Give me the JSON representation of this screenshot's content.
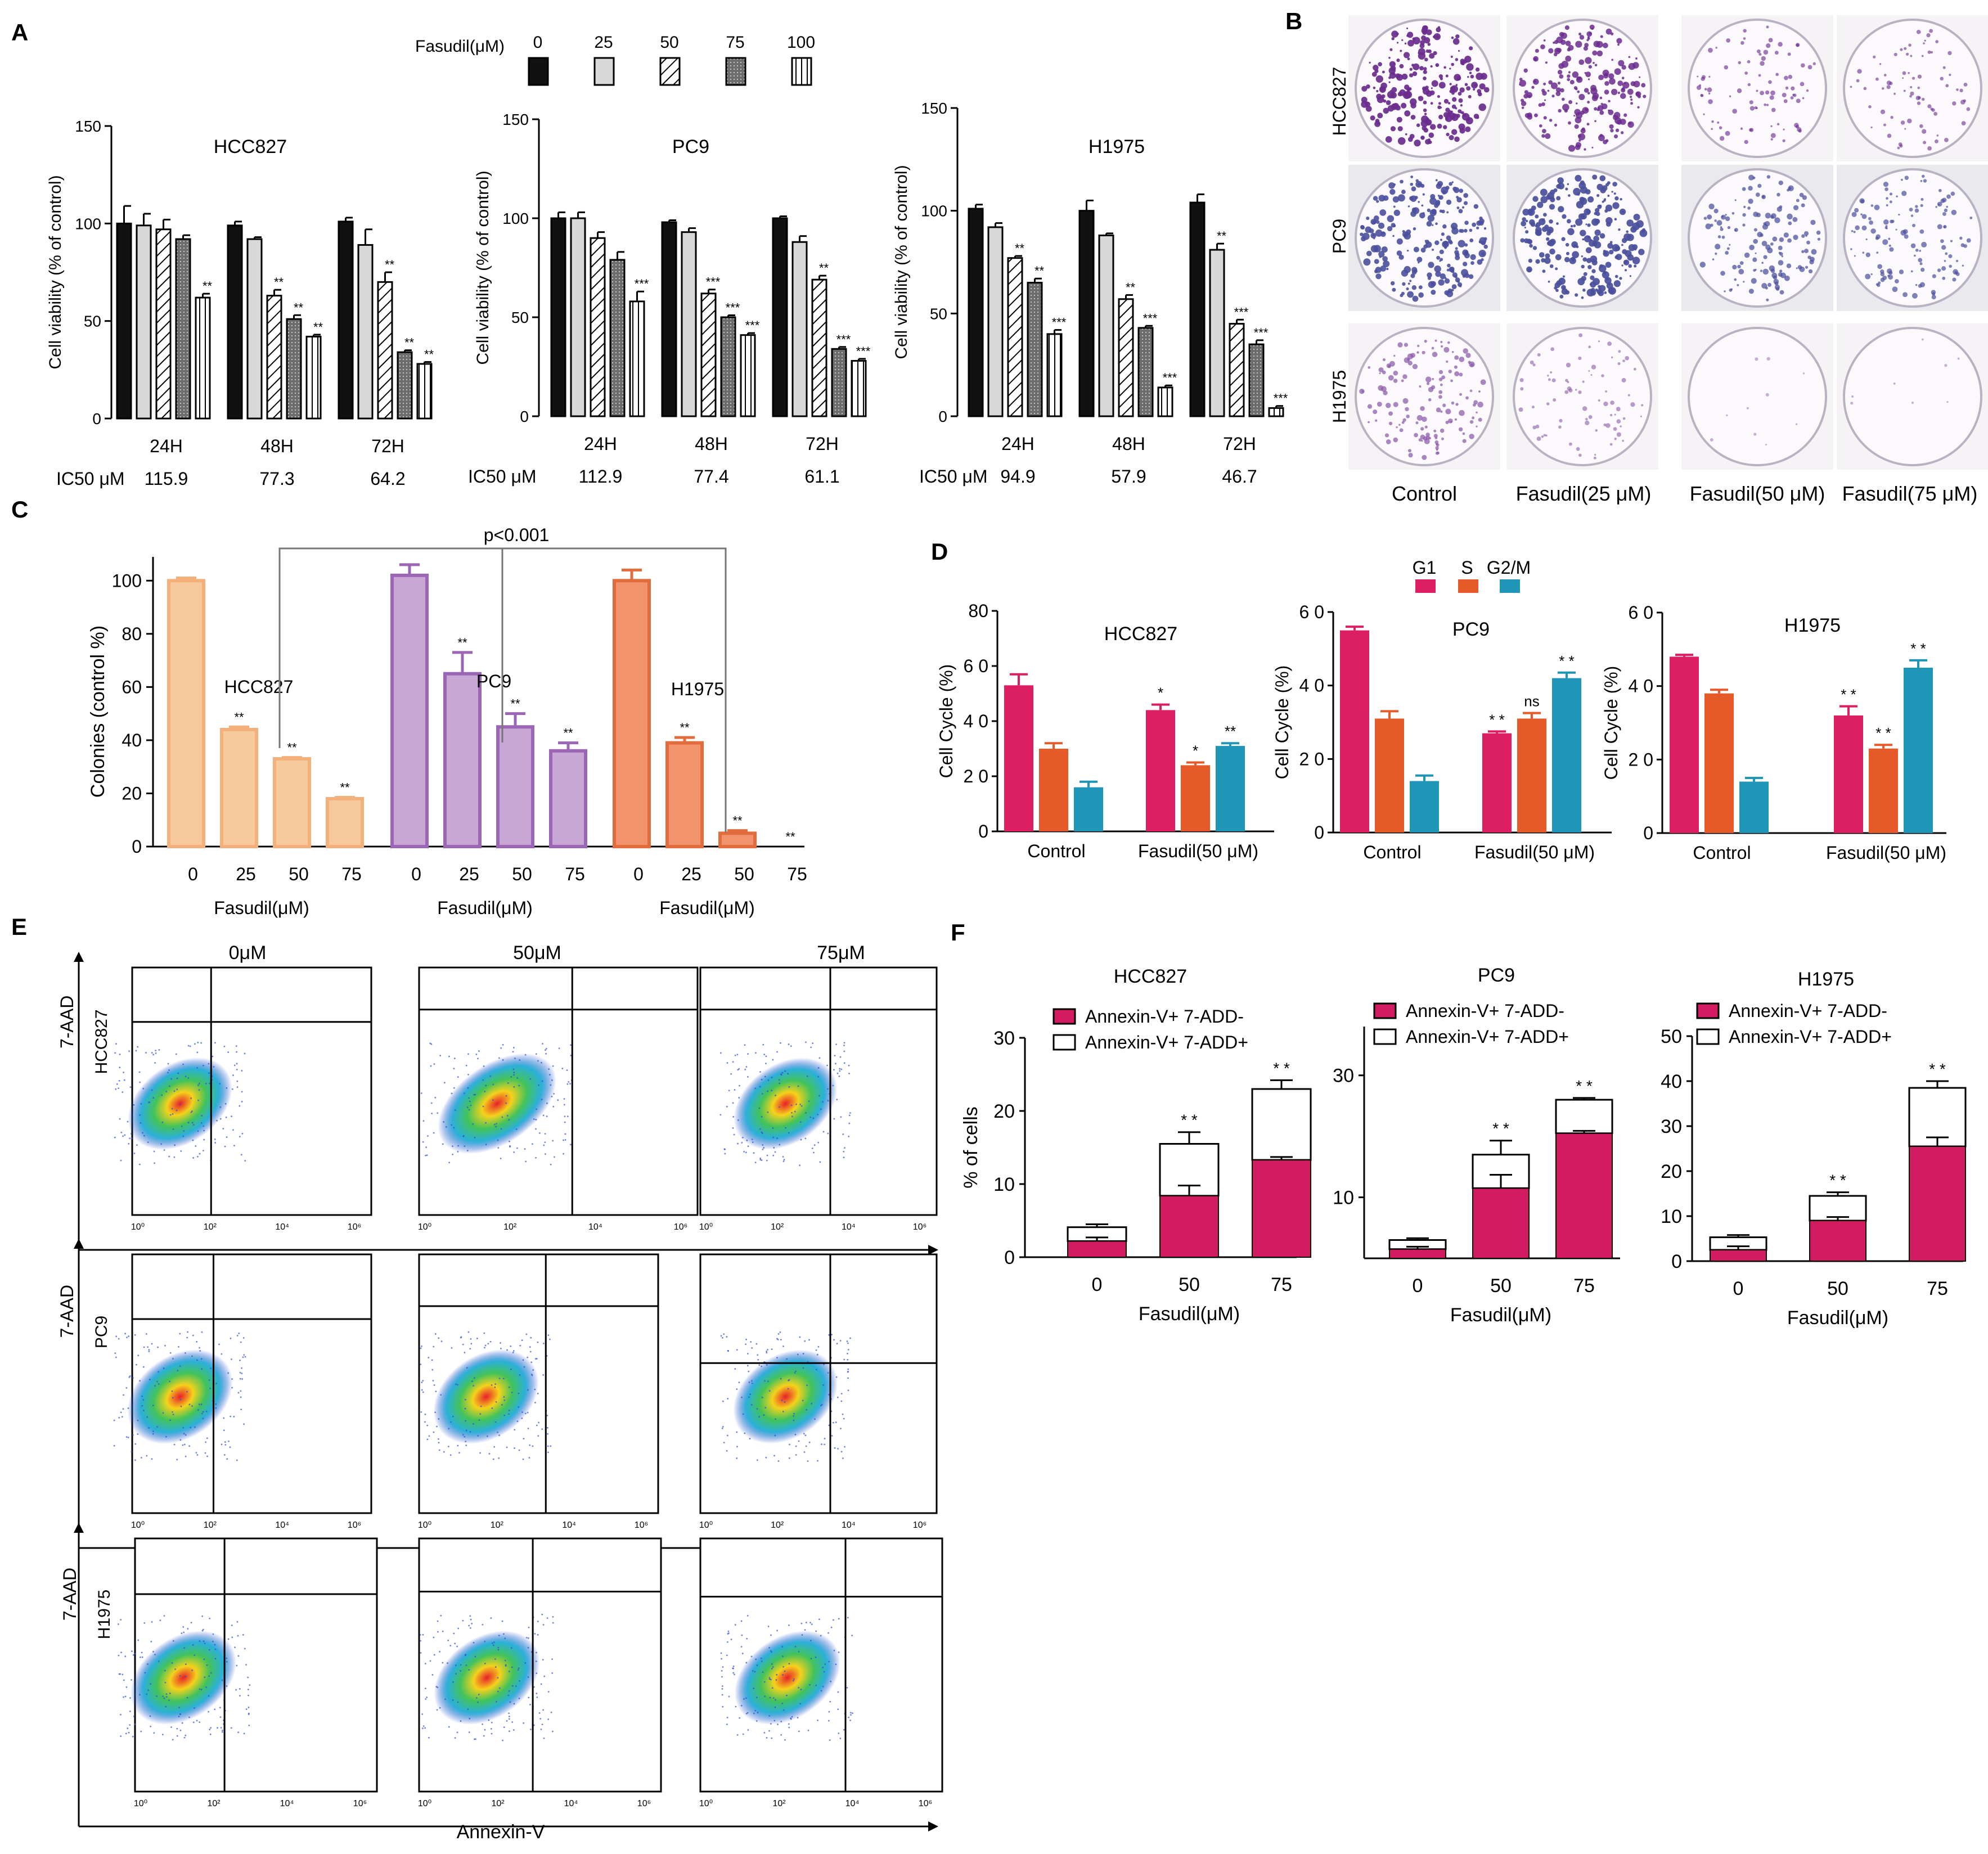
{
  "panel_labels": {
    "A": "A",
    "B": "B",
    "C": "C",
    "D": "D",
    "E": "E",
    "F": "F"
  },
  "panel_a": {
    "legend_title": "Fasudil(μM)",
    "legend_items": [
      "0",
      "25",
      "50",
      "75",
      "100"
    ],
    "ylabel": "Cell viability (% of control)",
    "ic50_label": "IC50 μM"
  },
  "panel_b": {
    "row_labels": [
      "HCC827",
      "PC9",
      "H1975"
    ],
    "col_labels": [
      "Control",
      "Fasudil(25 μM)",
      "Fasudil(50 μM)",
      "Fasudil(75 μM)"
    ],
    "stain_colors": [
      "#6a2c8e",
      "#4a4f9c",
      "#8a5aa8"
    ],
    "stain_density": [
      [
        0.95,
        0.8,
        0.35,
        0.3
      ],
      [
        0.9,
        0.95,
        0.55,
        0.5
      ],
      [
        0.55,
        0.3,
        0.04,
        0.03
      ]
    ]
  },
  "panel_e": {
    "col_labels": [
      "0μM",
      "50μM",
      "75μM"
    ],
    "row_labels": [
      "HCC827",
      "PC9",
      "H1975"
    ],
    "ylabel": "7-AAD",
    "xlabel": "Annexin-V",
    "tick_labels": [
      "10⁰",
      "10²",
      "10⁴",
      "10⁶"
    ]
  },
  "chart_data": [
    {
      "id": "A-HCC827",
      "type": "bar",
      "title": "HCC827",
      "ylabel": "Cell viability (% of control)",
      "ylim": [
        0,
        150
      ],
      "yticks": [
        0,
        50,
        100,
        150
      ],
      "categories": [
        "24H",
        "48H",
        "72H"
      ],
      "series": [
        {
          "name": "0",
          "values": [
            100,
            99,
            101
          ],
          "errors": [
            9,
            2,
            2
          ]
        },
        {
          "name": "25",
          "values": [
            99,
            92,
            89
          ],
          "errors": [
            6,
            1,
            8
          ]
        },
        {
          "name": "50",
          "values": [
            97,
            63,
            70
          ],
          "errors": [
            5,
            3,
            5
          ]
        },
        {
          "name": "75",
          "values": [
            92,
            51,
            34
          ],
          "errors": [
            2,
            2,
            1
          ]
        },
        {
          "name": "100",
          "values": [
            62,
            42,
            28
          ],
          "errors": [
            2,
            1,
            1
          ]
        }
      ],
      "significance": [
        [
          "",
          "",
          "",
          "",
          "**"
        ],
        [
          "",
          "",
          "**",
          "**",
          "**"
        ],
        [
          "",
          "",
          "**",
          "**",
          "**"
        ]
      ],
      "ic50": [
        "115.9",
        "77.3",
        "64.2"
      ]
    },
    {
      "id": "A-PC9",
      "type": "bar",
      "title": "PC9",
      "ylabel": "Cell viability (% of control)",
      "ylim": [
        0,
        150
      ],
      "yticks": [
        0,
        50,
        100,
        150
      ],
      "categories": [
        "24H",
        "48H",
        "72H"
      ],
      "series": [
        {
          "name": "0",
          "values": [
            100,
            98,
            100
          ],
          "errors": [
            3,
            1,
            1
          ]
        },
        {
          "name": "25",
          "values": [
            100,
            93,
            88
          ],
          "errors": [
            3,
            2,
            3
          ]
        },
        {
          "name": "50",
          "values": [
            90,
            62,
            69
          ],
          "errors": [
            3,
            2,
            2
          ]
        },
        {
          "name": "75",
          "values": [
            79,
            50,
            34
          ],
          "errors": [
            4,
            1,
            1
          ]
        },
        {
          "name": "100",
          "values": [
            58,
            41,
            28
          ],
          "errors": [
            5,
            1,
            1
          ]
        }
      ],
      "significance": [
        [
          "",
          "",
          "",
          "",
          "***"
        ],
        [
          "",
          "",
          "***",
          "***",
          "***"
        ],
        [
          "",
          "",
          "**",
          "***",
          "***"
        ]
      ],
      "ic50": [
        "112.9",
        "77.4",
        "61.1"
      ]
    },
    {
      "id": "A-H1975",
      "type": "bar",
      "title": "H1975",
      "ylabel": "Cell viability (% of control)",
      "ylim": [
        0,
        150
      ],
      "yticks": [
        0,
        50,
        100,
        150
      ],
      "categories": [
        "24H",
        "48H",
        "72H"
      ],
      "series": [
        {
          "name": "0",
          "values": [
            101,
            100,
            104
          ],
          "errors": [
            2,
            5,
            4
          ]
        },
        {
          "name": "25",
          "values": [
            92,
            88,
            81
          ],
          "errors": [
            2,
            1,
            3
          ]
        },
        {
          "name": "50",
          "values": [
            77,
            57,
            45
          ],
          "errors": [
            1,
            2,
            2
          ]
        },
        {
          "name": "75",
          "values": [
            65,
            43,
            35
          ],
          "errors": [
            2,
            1,
            2
          ]
        },
        {
          "name": "100",
          "values": [
            40,
            14,
            4
          ],
          "errors": [
            2,
            1,
            1
          ]
        }
      ],
      "significance": [
        [
          "",
          "",
          "**",
          "**",
          "***"
        ],
        [
          "",
          "",
          "**",
          "***",
          "***"
        ],
        [
          "",
          "**",
          "***",
          "***",
          "***"
        ]
      ],
      "ic50": [
        "94.9",
        "57.9",
        "46.7"
      ]
    },
    {
      "id": "C",
      "type": "bar",
      "ylabel": "Colonies (control %)",
      "xlabel": "Fasudil(μM)",
      "ylim": [
        0,
        110
      ],
      "yticks": [
        0,
        20,
        40,
        60,
        80,
        100
      ],
      "annotation": "p<0.001",
      "groups": [
        {
          "name": "HCC827",
          "color": "#f8c99c",
          "edge": "#f3b07a",
          "categories": [
            "0",
            "25",
            "50",
            "75"
          ],
          "values": [
            100,
            44,
            33,
            18
          ],
          "errors": [
            1,
            1,
            0.5,
            0.5
          ],
          "significance": [
            "",
            "**",
            "**",
            "**"
          ]
        },
        {
          "name": "PC9",
          "color": "#c9a7d5",
          "edge": "#9b67b5",
          "categories": [
            "0",
            "25",
            "50",
            "75"
          ],
          "values": [
            102,
            65,
            45,
            36
          ],
          "errors": [
            4,
            8,
            5,
            3
          ],
          "significance": [
            "",
            "**",
            "**",
            "**"
          ]
        },
        {
          "name": "H1975",
          "color": "#f1936d",
          "edge": "#e26c3c",
          "categories": [
            "0",
            "25",
            "50",
            "75"
          ],
          "values": [
            100,
            39,
            5,
            0
          ],
          "errors": [
            4,
            2,
            1,
            0
          ],
          "significance": [
            "",
            "**",
            "**",
            "**"
          ]
        }
      ]
    },
    {
      "id": "D-HCC827",
      "type": "bar",
      "title": "HCC827",
      "ylabel": "Cell Cycle (%)",
      "ylim": [
        0,
        80
      ],
      "yticks": [
        0,
        20,
        40,
        60,
        80
      ],
      "ytick_labels": [
        "0",
        "2 0",
        "4 0",
        "6 0",
        "80"
      ],
      "categories": [
        "Control",
        "Fasudil(50 μM)"
      ],
      "series": [
        {
          "name": "G1",
          "color": "#dc1f63",
          "values": [
            53,
            44
          ],
          "errors": [
            4,
            2
          ]
        },
        {
          "name": "S",
          "color": "#e65a2a",
          "values": [
            30,
            24
          ],
          "errors": [
            2,
            1
          ]
        },
        {
          "name": "G2/M",
          "color": "#1f95b8",
          "values": [
            16,
            31
          ],
          "errors": [
            2,
            1
          ]
        }
      ],
      "significance": [
        [
          "",
          "",
          ""
        ],
        [
          "*",
          "*",
          "**"
        ]
      ]
    },
    {
      "id": "D-PC9",
      "type": "bar",
      "title": "PC9",
      "ylabel": "Cell Cycle (%)",
      "ylim": [
        0,
        60
      ],
      "yticks": [
        0,
        20,
        40,
        60
      ],
      "ytick_labels": [
        "0",
        "2 0",
        "4 0",
        "6 0"
      ],
      "categories": [
        "Control",
        "Fasudil(50 μM)"
      ],
      "series": [
        {
          "name": "G1",
          "color": "#dc1f63",
          "values": [
            55,
            27
          ],
          "errors": [
            1,
            0.5
          ]
        },
        {
          "name": "S",
          "color": "#e65a2a",
          "values": [
            31,
            31
          ],
          "errors": [
            2,
            1.5
          ]
        },
        {
          "name": "G2/M",
          "color": "#1f95b8",
          "values": [
            14,
            42
          ],
          "errors": [
            1.5,
            1.5
          ]
        }
      ],
      "significance": [
        [
          "",
          "",
          ""
        ],
        [
          "* *",
          "ns",
          "* *"
        ]
      ]
    },
    {
      "id": "D-H1975",
      "type": "bar",
      "title": "H1975",
      "ylabel": "Cell Cycle (%)",
      "ylim": [
        0,
        60
      ],
      "yticks": [
        0,
        20,
        40,
        60
      ],
      "ytick_labels": [
        "0",
        "2 0",
        "4 0",
        "6 0"
      ],
      "categories": [
        "Control",
        "Fasudil(50 μM)"
      ],
      "series": [
        {
          "name": "G1",
          "color": "#dc1f63",
          "values": [
            48,
            32
          ],
          "errors": [
            0.5,
            2.5
          ]
        },
        {
          "name": "S",
          "color": "#e65a2a",
          "values": [
            38,
            23
          ],
          "errors": [
            1,
            1
          ]
        },
        {
          "name": "G2/M",
          "color": "#1f95b8",
          "values": [
            14,
            45
          ],
          "errors": [
            1,
            2
          ]
        }
      ],
      "significance": [
        [
          "",
          "",
          ""
        ],
        [
          "* *",
          "* *",
          "* *"
        ]
      ],
      "legend": [
        "G1",
        "S",
        "G2/M"
      ]
    },
    {
      "id": "F-HCC827",
      "type": "bar",
      "stacked": true,
      "title": "HCC827",
      "ylabel": "% of cells",
      "xlabel": "Fasudil(μM)",
      "ylim": [
        0,
        30
      ],
      "yticks": [
        0,
        10,
        20,
        30
      ],
      "categories": [
        "0",
        "50",
        "75"
      ],
      "series": [
        {
          "name": "Annexin-V+ 7-ADD-",
          "color": "#d31b61",
          "values": [
            2.2,
            8.4,
            13.3
          ],
          "errors": [
            0.5,
            1.4,
            0.4
          ]
        },
        {
          "name": "Annexin-V+ 7-ADD+",
          "color": "#ffffff",
          "values": [
            1.9,
            7.1,
            9.7
          ],
          "errors": [
            0.4,
            1.6,
            1.2
          ]
        }
      ],
      "significance": [
        "",
        "* *",
        "* *"
      ]
    },
    {
      "id": "F-PC9",
      "type": "bar",
      "stacked": true,
      "title": "PC9",
      "ylabel": "",
      "xlabel": "Fasudil(μM)",
      "ylim": [
        0,
        38
      ],
      "yticks": [
        10,
        30
      ],
      "ytick_labels": [
        "10",
        "30"
      ],
      "categories": [
        "0",
        "50",
        "75"
      ],
      "series": [
        {
          "name": "Annexin-V+ 7-ADD-",
          "color": "#d31b61",
          "values": [
            1.5,
            11.5,
            20.5
          ],
          "errors": [
            0.4,
            2.2,
            0.4
          ]
        },
        {
          "name": "Annexin-V+ 7-ADD+",
          "color": "#ffffff",
          "values": [
            1.5,
            5.5,
            5.5
          ],
          "errors": [
            0.3,
            2.3,
            0.3
          ]
        }
      ],
      "significance": [
        "",
        "* *",
        "* *"
      ]
    },
    {
      "id": "F-H1975",
      "type": "bar",
      "stacked": true,
      "title": "H1975",
      "ylabel": "",
      "xlabel": "Fasudil(μM)",
      "ylim": [
        0,
        50
      ],
      "yticks": [
        0,
        10,
        20,
        30,
        40,
        50
      ],
      "categories": [
        "0",
        "50",
        "75"
      ],
      "series": [
        {
          "name": "Annexin-V+ 7-ADD-",
          "color": "#d31b61",
          "values": [
            2.5,
            9,
            25.5
          ],
          "errors": [
            0.8,
            0.8,
            2
          ]
        },
        {
          "name": "Annexin-V+ 7-ADD+",
          "color": "#ffffff",
          "values": [
            2.8,
            5.5,
            13
          ],
          "errors": [
            0.5,
            0.8,
            1.5
          ]
        }
      ],
      "significance": [
        "",
        "* *",
        "* *"
      ]
    }
  ]
}
